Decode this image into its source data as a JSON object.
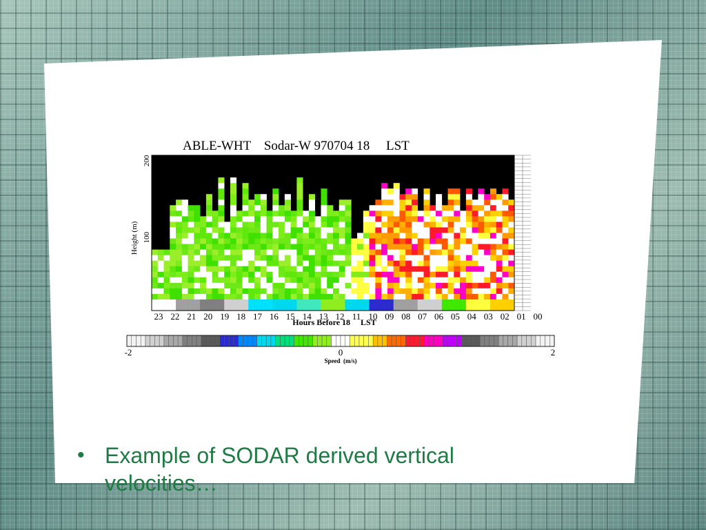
{
  "slide": {
    "bullet_symbol": "•",
    "bullet_text": "Example of SODAR derived vertical velocities…"
  },
  "chart_data": {
    "type": "heatmap",
    "title": "ABLE-WHT    Sodar-W 970704 18     LST",
    "xlabel": "Hours Before 18     LST",
    "ylabel": "Height (m)",
    "x_tick_labels": [
      "23",
      "22",
      "21",
      "20",
      "19",
      "18",
      "17",
      "16",
      "15",
      "14",
      "13",
      "12",
      "11",
      "10",
      "09",
      "08",
      "07",
      "06",
      "05",
      "04",
      "03",
      "02",
      "01",
      "00"
    ],
    "y_tick_labels": [
      "100",
      "200"
    ],
    "colorbar": {
      "label": "Speed  (m/s)",
      "min_label": "-2",
      "mid_label": "0",
      "max_label": "2",
      "range": [
        -2,
        2
      ],
      "colors": [
        "#f2f2f2",
        "#d0d0d0",
        "#a8a8a8",
        "#808080",
        "#5a5a5a",
        "#2b2bd0",
        "#0088ff",
        "#00d8f0",
        "#00e07a",
        "#40e800",
        "#90ee20",
        "#ffffff",
        "#ffff50",
        "#ffc000",
        "#ff6a00",
        "#ff1a30",
        "#ff00c0",
        "#c000ff",
        "#5a5a5a",
        "#808080",
        "#a8a8a8",
        "#d0d0d0",
        "#f2f2f2"
      ]
    },
    "description_hint": "Vertical velocity vs time (hours before 18 LST) and height (0-200 m); left half mostly green (weak downward), right half yellow/orange/red/magenta (upward), black above signal top."
  }
}
